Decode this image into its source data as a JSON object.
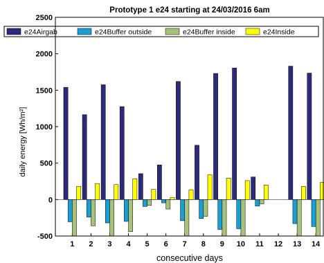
{
  "chart_data": {
    "type": "bar",
    "title": "Prototype 1 e24 starting at 24/03/2016 6am",
    "xlabel": "consecutive days",
    "ylabel": "daily energy [Wh/m²]",
    "ylim": [
      -500,
      2500
    ],
    "yticks": [
      -500,
      0,
      500,
      1000,
      1500,
      2000,
      2500
    ],
    "categories": [
      "1",
      "2",
      "3",
      "4",
      "5",
      "6",
      "7",
      "8",
      "9",
      "10",
      "11",
      "12",
      "13",
      "14"
    ],
    "legend_position": "top",
    "grid": false,
    "series": [
      {
        "name": "e24Airgab",
        "color": "#2e2a7a",
        "values": [
          1540,
          1165,
          1575,
          1275,
          355,
          475,
          1620,
          745,
          1730,
          1805,
          310,
          0,
          1830,
          1735
        ]
      },
      {
        "name": "e24Buffer outside",
        "color": "#1a9ed6",
        "values": [
          -305,
          -240,
          -320,
          -300,
          -95,
          -45,
          -290,
          -260,
          -410,
          -400,
          -90,
          0,
          -330,
          -370
        ]
      },
      {
        "name": "e24Buffer inside",
        "color": "#a7c27a",
        "values": [
          -500,
          -360,
          -500,
          -440,
          -80,
          -130,
          -500,
          -230,
          -500,
          -500,
          -60,
          0,
          -500,
          -500
        ]
      },
      {
        "name": "e24Inside",
        "color": "#ffff00",
        "values": [
          180,
          220,
          205,
          285,
          140,
          30,
          135,
          340,
          295,
          260,
          200,
          0,
          180,
          235
        ]
      }
    ]
  }
}
